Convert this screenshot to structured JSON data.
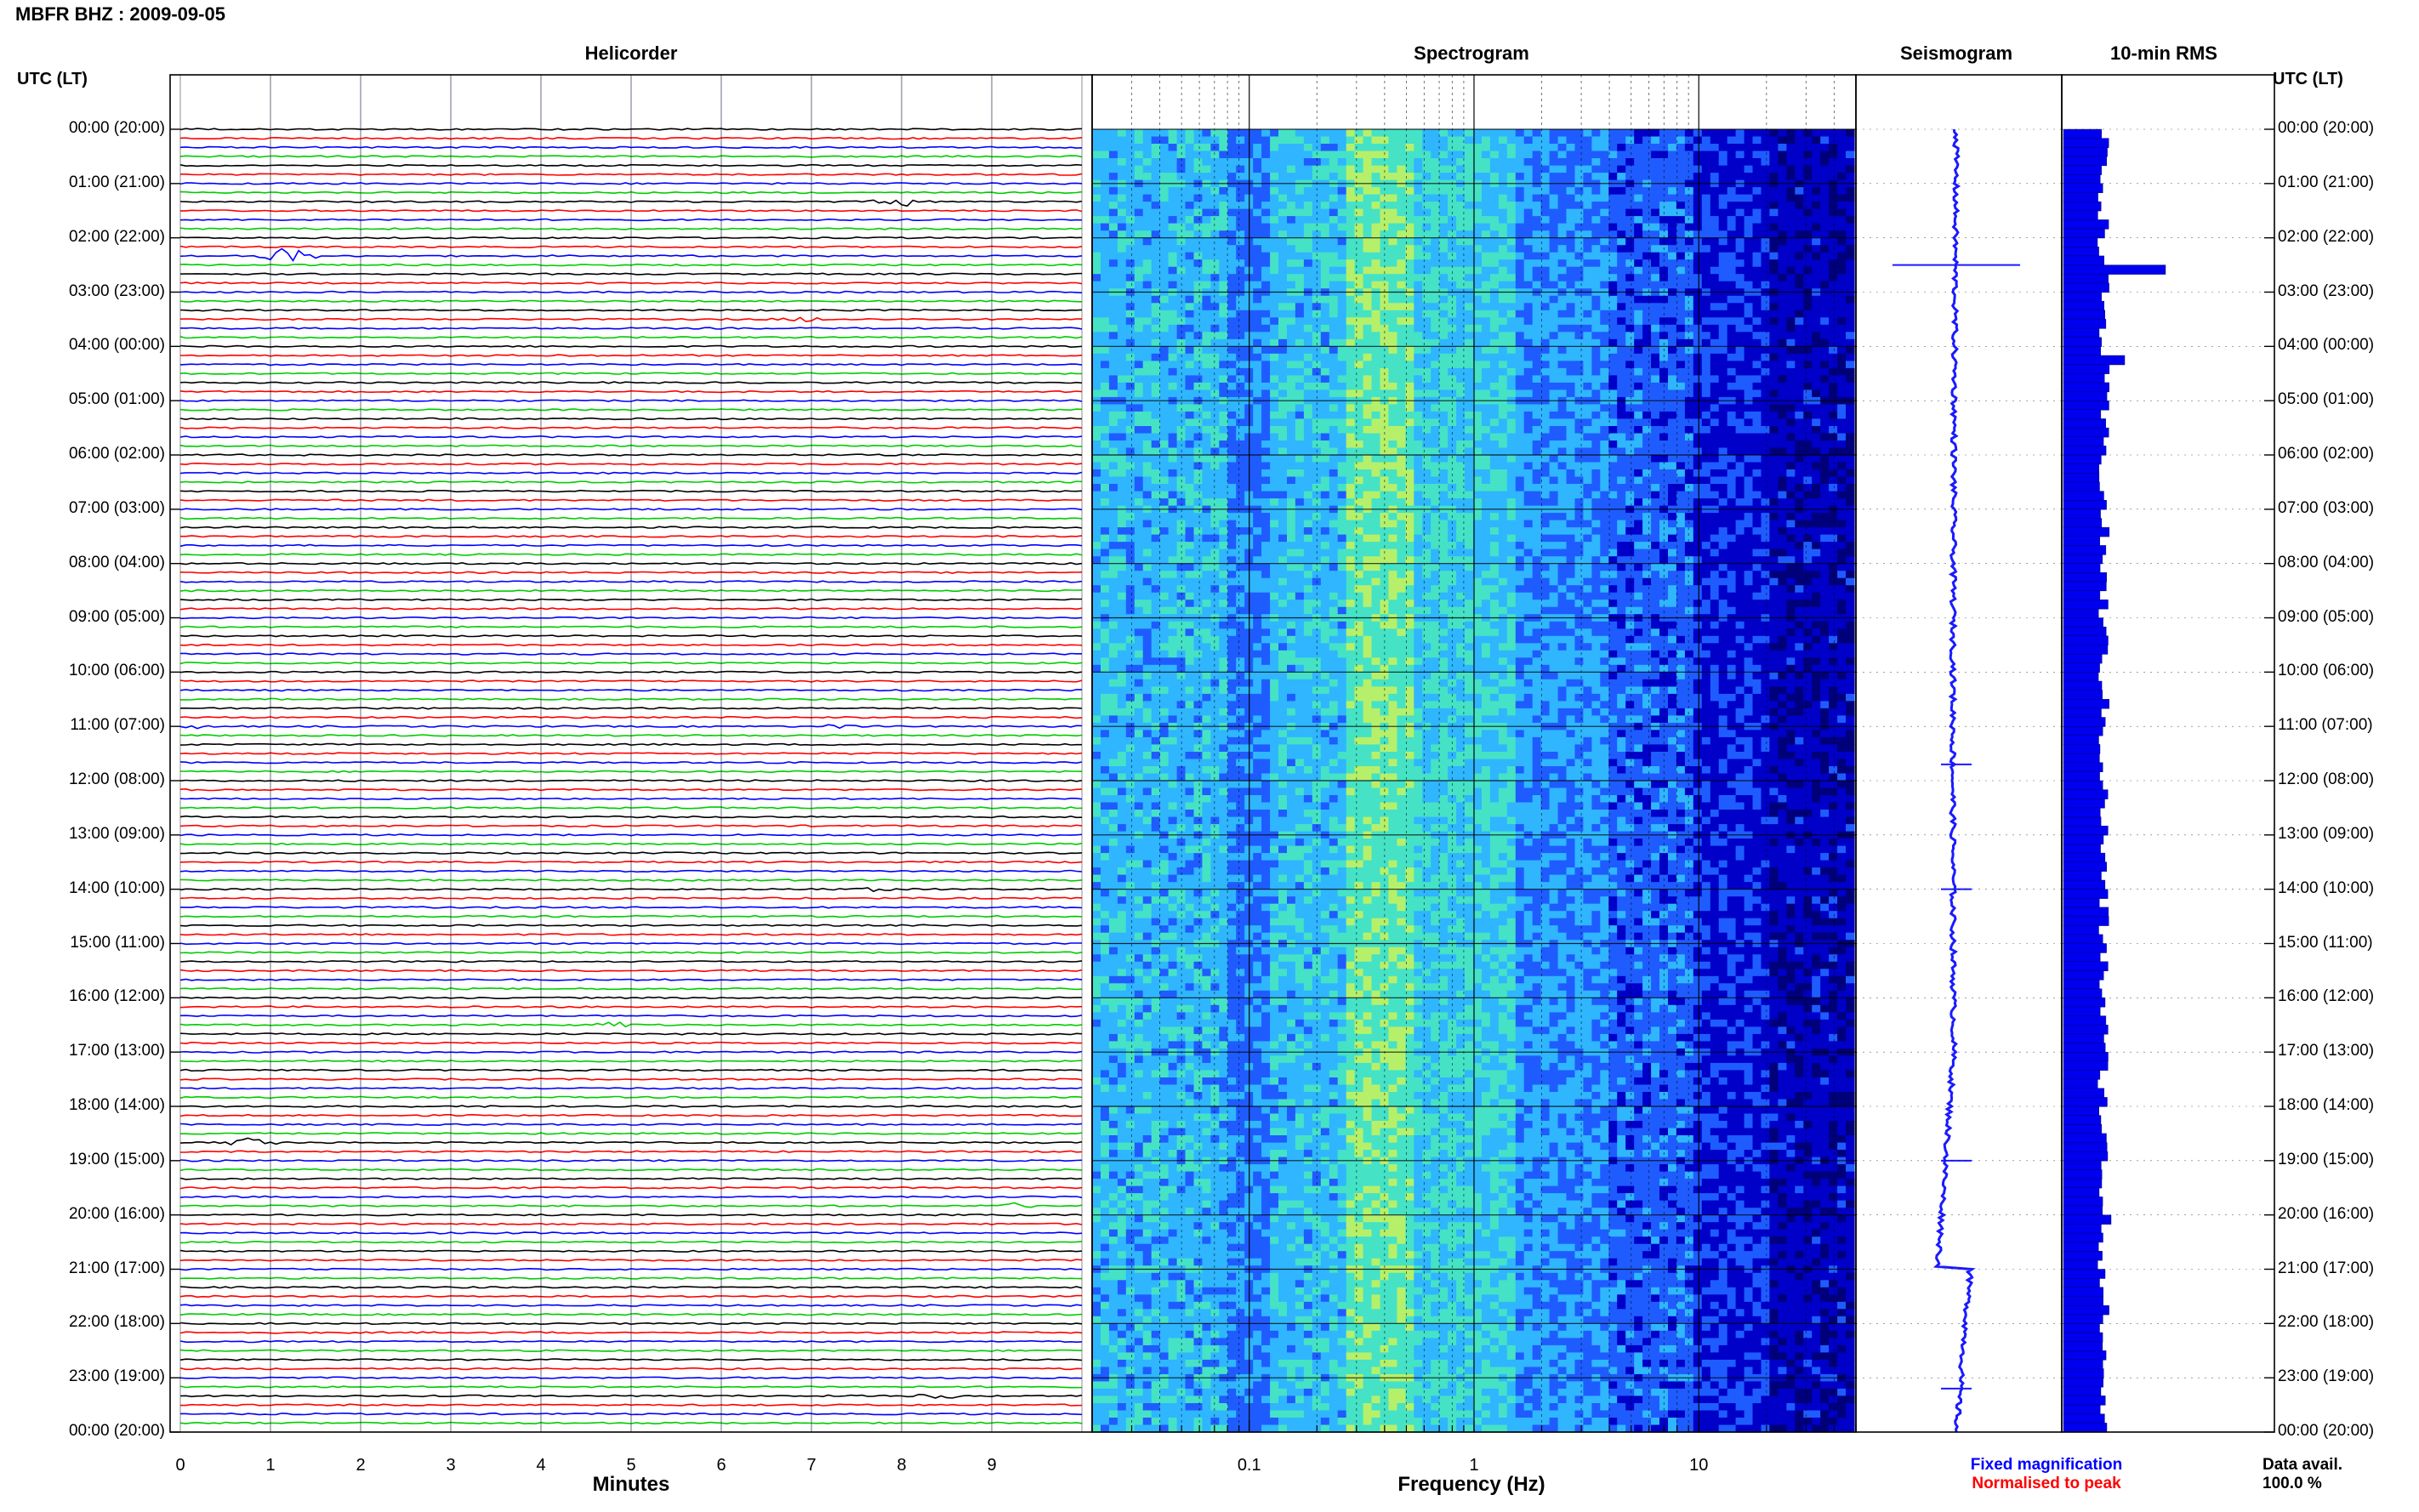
{
  "header": {
    "title": "MBFR BHZ : 2009-09-05"
  },
  "panels": {
    "helicorder": "Helicorder",
    "spectrogram": "Spectrogram",
    "seismogram": "Seismogram",
    "rms": "10-min RMS"
  },
  "axis": {
    "utc_label_left": "UTC (LT)",
    "utc_label_right": "UTC (LT)",
    "minutes_label": "Minutes",
    "frequency_label": "Frequency (Hz)"
  },
  "legend": {
    "fixed": "Fixed magnification",
    "normalised": "Normalised to peak",
    "data_avail_label": "Data avail.",
    "data_avail_value": "100.0 %"
  },
  "colors": {
    "trace_black": "#000000",
    "trace_red": "#ff0000",
    "trace_blue": "#0000ff",
    "trace_green": "#00cc00",
    "seismogram": "#1a1aff",
    "rms_bar": "#0000ee",
    "legend_fixed": "#0000ff",
    "legend_normalised": "#ff0000"
  },
  "chart_data": [
    {
      "type": "line",
      "name": "Helicorder",
      "xlabel": "Minutes",
      "x_ticks": [
        "0",
        "1",
        "2",
        "3",
        "4",
        "5",
        "6",
        "7",
        "8",
        "9"
      ],
      "xlim": [
        0,
        10
      ],
      "y_tick_labels": [
        "00:00 (20:00)",
        "01:00 (21:00)",
        "02:00 (22:00)",
        "03:00 (23:00)",
        "04:00 (00:00)",
        "05:00 (01:00)",
        "06:00 (02:00)",
        "07:00 (03:00)",
        "08:00 (04:00)",
        "09:00 (05:00)",
        "10:00 (06:00)",
        "11:00 (07:00)",
        "12:00 (08:00)",
        "13:00 (09:00)",
        "14:00 (10:00)",
        "15:00 (11:00)",
        "16:00 (12:00)",
        "17:00 (13:00)",
        "18:00 (14:00)",
        "19:00 (15:00)",
        "20:00 (16:00)",
        "21:00 (17:00)",
        "22:00 (18:00)",
        "23:00 (19:00)",
        "00:00 (20:00)"
      ],
      "rows": 144,
      "row_minutes": 10,
      "trace_colors_cycle": [
        "black",
        "red",
        "blue",
        "green"
      ],
      "events": [
        {
          "hour": 2.33,
          "minute": 1.2,
          "color": "green",
          "amp": 5
        },
        {
          "hour": 1.28,
          "minute": 8.0,
          "color": "black",
          "amp": 2.5
        },
        {
          "hour": 3.5,
          "minute": 6.9,
          "color": "red",
          "amp": 1.5
        },
        {
          "hour": 11.0,
          "minute": 0.15,
          "color": "blue",
          "amp": 1.5
        },
        {
          "hour": 11.0,
          "minute": 7.3,
          "color": "blue",
          "amp": 1.2
        },
        {
          "hour": 14.0,
          "minute": 7.7,
          "color": "red",
          "amp": 1.3
        },
        {
          "hour": 16.5,
          "minute": 4.8,
          "color": "green",
          "amp": 2.0
        },
        {
          "hour": 18.67,
          "minute": 0.8,
          "color": "black",
          "amp": 2.5
        },
        {
          "hour": 19.83,
          "minute": 9.3,
          "color": "green",
          "amp": 1.6
        },
        {
          "hour": 23.33,
          "minute": 8.4,
          "color": "red",
          "amp": 1.8
        }
      ]
    },
    {
      "type": "heatmap",
      "name": "Spectrogram",
      "xlabel": "Frequency (Hz)",
      "x_scale": "log",
      "x_ticks": [
        0.1,
        1,
        10
      ],
      "xlim": [
        0.02,
        50
      ],
      "colormap": [
        "#00007a",
        "#0000c8",
        "#1f5cff",
        "#2fb6ff",
        "#45e2c6",
        "#b6f06a"
      ]
    },
    {
      "type": "line",
      "name": "Seismogram",
      "spikes_hour": [
        2.5,
        11.7,
        14.0,
        19.0,
        23.2
      ]
    },
    {
      "type": "bar",
      "name": "10-min RMS",
      "peaks": [
        {
          "hour": 2.5,
          "value": 3.0
        },
        {
          "hour": 4.2,
          "value": 1.8
        },
        {
          "hour": 20.0,
          "value": 1.4
        }
      ]
    }
  ]
}
